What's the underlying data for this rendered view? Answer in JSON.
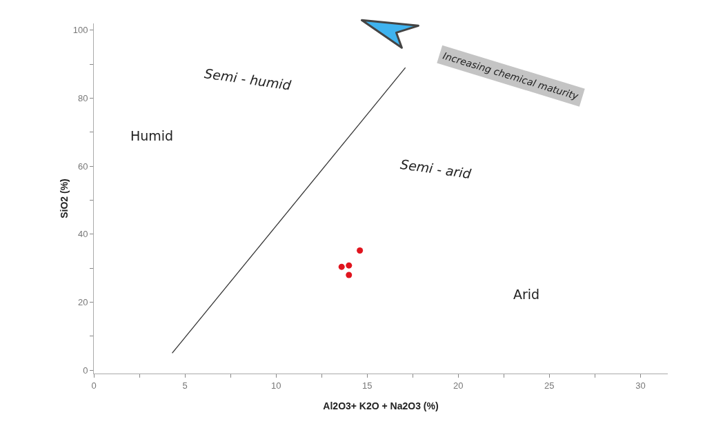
{
  "chart_data": {
    "type": "scatter",
    "xlabel": "Al2O3+ K2O + Na2O3 (%)",
    "ylabel": "SiO2 (%)",
    "xlim": [
      0,
      31.5
    ],
    "ylim": [
      -1,
      102
    ],
    "xticks": [
      0,
      {
        "value": 2.5,
        "label": null
      },
      5,
      {
        "value": 7.5,
        "label": null
      },
      10,
      {
        "value": 12.5,
        "label": null
      },
      15,
      {
        "value": 17.5,
        "label": null
      },
      20,
      {
        "value": 22.5,
        "label": null
      },
      25,
      {
        "value": 27.5,
        "label": null
      },
      30
    ],
    "yticks": [
      0,
      {
        "value": 10,
        "label": null
      },
      20,
      {
        "value": 30,
        "label": null
      },
      40,
      {
        "value": 50,
        "label": null
      },
      60,
      {
        "value": 70,
        "label": null
      },
      80,
      {
        "value": 90,
        "label": null
      },
      100
    ],
    "marker": "circle",
    "series": [
      {
        "color": "#e0141e",
        "x": [
          14.6,
          13.6,
          14.0,
          14.0
        ],
        "values": [
          35.2,
          30.4,
          30.8,
          28.0
        ]
      },
      {
        "type": "line",
        "color": "#333333",
        "line_style": "solid",
        "marker": "none",
        "x": [
          4.3,
          17.1
        ],
        "values": [
          5,
          89
        ]
      }
    ],
    "annotations": [
      "Humid",
      "Semi - humid",
      "Semi - arid",
      "Arid",
      "Increasing chemical maturity"
    ]
  }
}
